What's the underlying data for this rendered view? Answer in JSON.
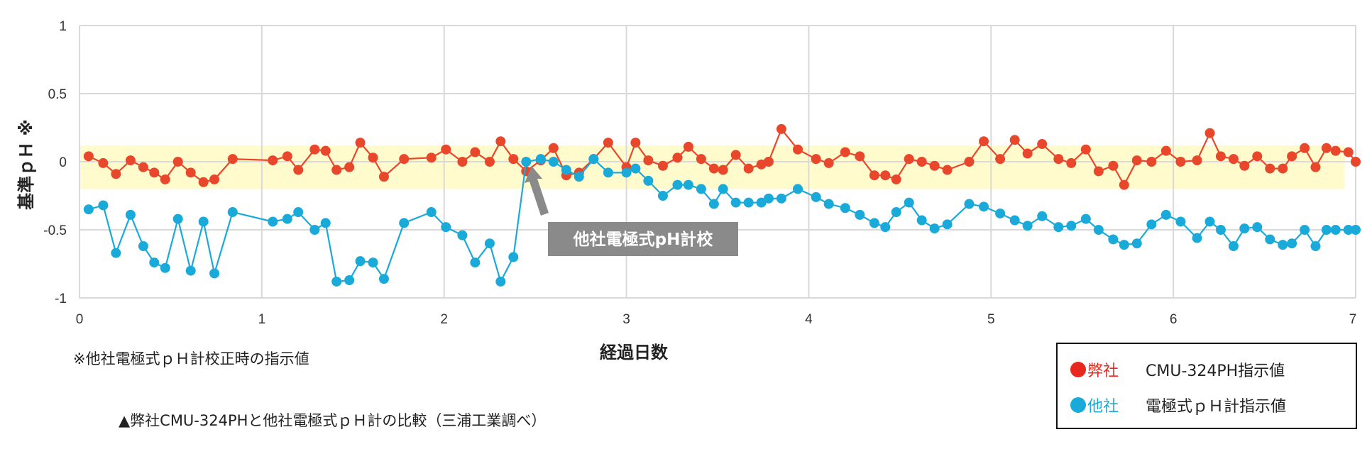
{
  "chart_data": {
    "type": "line",
    "xlabel": "経過日数",
    "ylabel": "基準ｐＨ ※",
    "xlim": [
      0,
      7
    ],
    "ylim": [
      -1,
      1
    ],
    "x_ticks": [
      "0",
      "1",
      "2",
      "3",
      "4",
      "5",
      "6",
      "7"
    ],
    "y_ticks": [
      "1",
      "0.5",
      "0",
      "-0.5",
      "-1"
    ],
    "grid": true,
    "band": {
      "ymin": -0.2,
      "ymax": 0.12,
      "color": "#FFFBCC"
    },
    "series": [
      {
        "name": "弊社",
        "color": "#E8472B",
        "x": [
          0.05,
          0.13,
          0.2,
          0.28,
          0.35,
          0.41,
          0.47,
          0.54,
          0.61,
          0.68,
          0.74,
          0.84,
          1.06,
          1.14,
          1.2,
          1.29,
          1.35,
          1.41,
          1.48,
          1.54,
          1.61,
          1.67,
          1.78,
          1.93,
          2.01,
          2.1,
          2.17,
          2.25,
          2.31,
          2.38,
          2.45,
          2.53,
          2.6,
          2.67,
          2.74,
          2.82,
          2.9,
          3.0,
          3.05,
          3.12,
          3.2,
          3.28,
          3.34,
          3.41,
          3.48,
          3.53,
          3.6,
          3.67,
          3.74,
          3.78,
          3.85,
          3.94,
          4.04,
          4.11,
          4.2,
          4.28,
          4.36,
          4.42,
          4.48,
          4.55,
          4.62,
          4.69,
          4.76,
          4.88,
          4.96,
          5.05,
          5.13,
          5.2,
          5.28,
          5.37,
          5.44,
          5.52,
          5.59,
          5.67,
          5.73,
          5.8,
          5.88,
          5.96,
          6.04,
          6.13,
          6.2,
          6.26,
          6.33,
          6.39,
          6.46,
          6.53,
          6.6,
          6.65,
          6.72,
          6.78,
          6.84,
          6.89,
          6.96,
          7.0
        ],
        "y": [
          0.04,
          -0.01,
          -0.09,
          0.01,
          -0.04,
          -0.08,
          -0.13,
          0.0,
          -0.08,
          -0.15,
          -0.13,
          0.02,
          0.01,
          0.04,
          -0.06,
          0.09,
          0.08,
          -0.06,
          -0.04,
          0.14,
          0.03,
          -0.11,
          0.02,
          0.03,
          0.09,
          0.0,
          0.07,
          0.0,
          0.15,
          0.02,
          -0.07,
          0.01,
          0.1,
          -0.1,
          -0.08,
          0.02,
          0.14,
          -0.04,
          0.14,
          0.01,
          -0.03,
          0.03,
          0.11,
          0.02,
          -0.05,
          -0.06,
          0.05,
          -0.05,
          -0.02,
          0.0,
          0.24,
          0.09,
          0.02,
          -0.01,
          0.07,
          0.04,
          -0.1,
          -0.1,
          -0.13,
          0.02,
          0.0,
          -0.03,
          -0.06,
          0.0,
          0.15,
          0.02,
          0.16,
          0.06,
          0.13,
          0.02,
          -0.01,
          0.09,
          -0.07,
          -0.03,
          -0.17,
          0.01,
          0.0,
          0.08,
          0.0,
          0.01,
          0.21,
          0.04,
          0.02,
          -0.03,
          0.04,
          -0.05,
          -0.05,
          0.04,
          0.1,
          -0.04,
          0.1,
          0.08,
          0.07,
          0.0
        ]
      },
      {
        "name": "他社",
        "color": "#1AAAD9",
        "x": [
          0.05,
          0.13,
          0.2,
          0.28,
          0.35,
          0.41,
          0.47,
          0.54,
          0.61,
          0.68,
          0.74,
          0.84,
          1.06,
          1.14,
          1.2,
          1.29,
          1.35,
          1.41,
          1.48,
          1.54,
          1.61,
          1.67,
          1.78,
          1.93,
          2.01,
          2.1,
          2.17,
          2.25,
          2.31,
          2.38,
          2.45,
          2.53,
          2.6,
          2.67,
          2.74,
          2.82,
          2.9,
          3.0,
          3.05,
          3.12,
          3.2,
          3.28,
          3.34,
          3.41,
          3.48,
          3.53,
          3.6,
          3.67,
          3.74,
          3.78,
          3.85,
          3.94,
          4.04,
          4.11,
          4.2,
          4.28,
          4.36,
          4.42,
          4.48,
          4.55,
          4.62,
          4.69,
          4.76,
          4.88,
          4.96,
          5.05,
          5.13,
          5.2,
          5.28,
          5.37,
          5.44,
          5.52,
          5.59,
          5.67,
          5.73,
          5.8,
          5.88,
          5.96,
          6.04,
          6.13,
          6.2,
          6.26,
          6.33,
          6.39,
          6.46,
          6.53,
          6.6,
          6.65,
          6.72,
          6.78,
          6.84,
          6.89,
          6.96,
          7.0
        ],
        "y": [
          -0.35,
          -0.32,
          -0.67,
          -0.39,
          -0.62,
          -0.74,
          -0.78,
          -0.42,
          -0.8,
          -0.44,
          -0.82,
          -0.37,
          -0.44,
          -0.42,
          -0.37,
          -0.5,
          -0.45,
          -0.88,
          -0.87,
          -0.73,
          -0.74,
          -0.86,
          -0.45,
          -0.37,
          -0.48,
          -0.54,
          -0.74,
          -0.6,
          -0.88,
          -0.7,
          0.0,
          0.02,
          0.0,
          -0.06,
          -0.11,
          0.02,
          -0.08,
          -0.08,
          -0.05,
          -0.14,
          -0.25,
          -0.17,
          -0.17,
          -0.2,
          -0.31,
          -0.2,
          -0.3,
          -0.3,
          -0.3,
          -0.27,
          -0.27,
          -0.2,
          -0.26,
          -0.31,
          -0.34,
          -0.39,
          -0.45,
          -0.48,
          -0.37,
          -0.3,
          -0.43,
          -0.49,
          -0.46,
          -0.31,
          -0.33,
          -0.38,
          -0.43,
          -0.47,
          -0.4,
          -0.48,
          -0.47,
          -0.42,
          -0.5,
          -0.57,
          -0.61,
          -0.6,
          -0.46,
          -0.39,
          -0.44,
          -0.56,
          -0.44,
          -0.5,
          -0.62,
          -0.49,
          -0.48,
          -0.57,
          -0.61,
          -0.6,
          -0.5,
          -0.62,
          -0.5,
          -0.5,
          -0.5,
          -0.5
        ]
      }
    ],
    "annotation": {
      "text": "他社電極式pH計校",
      "x": 2.48,
      "y": 0.0
    }
  },
  "notes": {
    "footnote": "※他社電極式ｐＨ計校正時の指示値",
    "caption": "▲弊社CMU-324PHと他社電極式ｐＨ計の比較（三浦工業調べ）"
  },
  "legend": {
    "items": [
      {
        "name": "弊社",
        "desc": "CMU-324PH指示値",
        "color": "#E8281E",
        "name_color": "#E8281E"
      },
      {
        "name": "他社",
        "desc": "電極式ｐＨ計指示値",
        "color": "#1AAAD9",
        "name_color": "#1AAAD9"
      }
    ]
  }
}
